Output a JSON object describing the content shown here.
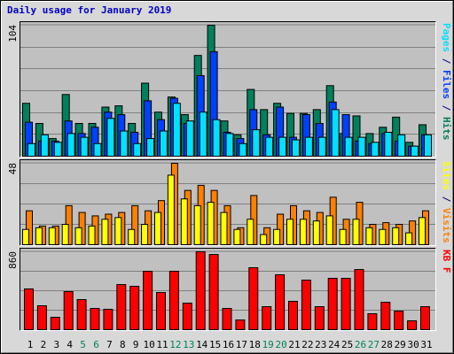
{
  "chart_data": [
    {
      "type": "bar",
      "title": "Daily usage for January 2019",
      "title_color": "#0000c0",
      "ylim": [
        0,
        104
      ],
      "yticks": [
        104
      ],
      "grid": true,
      "legend_separator": " / ",
      "series": [
        {
          "name": "Pages",
          "color": "#00e0ff",
          "values": [
            10,
            17,
            11,
            18,
            15,
            10,
            30,
            20,
            10,
            14,
            20,
            42,
            28,
            35,
            29,
            18,
            10,
            21,
            15,
            15,
            13,
            15,
            15,
            37,
            15,
            15,
            11,
            19,
            17,
            8,
            17
          ]
        },
        {
          "name": "Files",
          "color": "#0040ff",
          "values": [
            27,
            12,
            12,
            28,
            18,
            23,
            35,
            33,
            19,
            44,
            29,
            46,
            26,
            64,
            83,
            19,
            14,
            37,
            17,
            39,
            15,
            33,
            26,
            43,
            33,
            12,
            10,
            18,
            12,
            8,
            17
          ]
        },
        {
          "name": "Hits",
          "color": "#00805c",
          "values": [
            42,
            26,
            14,
            49,
            26,
            26,
            39,
            40,
            26,
            58,
            35,
            47,
            33,
            80,
            104,
            28,
            17,
            53,
            37,
            42,
            34,
            34,
            37,
            56,
            18,
            32,
            18,
            23,
            31,
            11,
            25
          ]
        }
      ]
    },
    {
      "type": "bar",
      "ylim": [
        0,
        48
      ],
      "yticks": [
        48
      ],
      "grid": true,
      "legend_separator": " / ",
      "series": [
        {
          "name": "Sites",
          "color": "#ffff00",
          "values": [
            9,
            10,
            10,
            12,
            10,
            11,
            15,
            16,
            9,
            12,
            19,
            41,
            27,
            23,
            25,
            19,
            9,
            15,
            6,
            9,
            15,
            15,
            14,
            17,
            9,
            15,
            10,
            9,
            10,
            7,
            16
          ]
        },
        {
          "name": "Visits",
          "color": "#ff8000",
          "values": [
            20,
            11,
            11,
            23,
            19,
            17,
            18,
            19,
            23,
            20,
            26,
            48,
            32,
            35,
            32,
            23,
            10,
            29,
            10,
            18,
            23,
            20,
            19,
            28,
            15,
            25,
            12,
            13,
            12,
            14,
            20
          ]
        }
      ]
    },
    {
      "type": "bar",
      "ylim": [
        0,
        860
      ],
      "yticks": [
        860
      ],
      "grid": true,
      "categories": [
        "1",
        "2",
        "3",
        "4",
        "5",
        "6",
        "7",
        "8",
        "9",
        "10",
        "11",
        "12",
        "13",
        "14",
        "15",
        "16",
        "17",
        "18",
        "19",
        "20",
        "21",
        "22",
        "23",
        "24",
        "25",
        "26",
        "27",
        "28",
        "29",
        "30",
        "31"
      ],
      "category_colors": [
        "#000000",
        "#000000",
        "#000000",
        "#000000",
        "#00805c",
        "#00805c",
        "#000000",
        "#000000",
        "#000000",
        "#000000",
        "#000000",
        "#00805c",
        "#00805c",
        "#000000",
        "#000000",
        "#000000",
        "#000000",
        "#000000",
        "#00805c",
        "#00805c",
        "#000000",
        "#000000",
        "#000000",
        "#000000",
        "#000000",
        "#00805c",
        "#00805c",
        "#000000",
        "#000000",
        "#000000",
        "#000000"
      ],
      "series": [
        {
          "name": "KB F",
          "color": "#ff0000",
          "values": [
            450,
            264,
            137,
            420,
            332,
            234,
            225,
            498,
            479,
            645,
            410,
            645,
            293,
            860,
            830,
            234,
            107,
            684,
            254,
            606,
            313,
            547,
            254,
            567,
            567,
            664,
            176,
            303,
            205,
            98,
            254
          ]
        }
      ]
    }
  ]
}
